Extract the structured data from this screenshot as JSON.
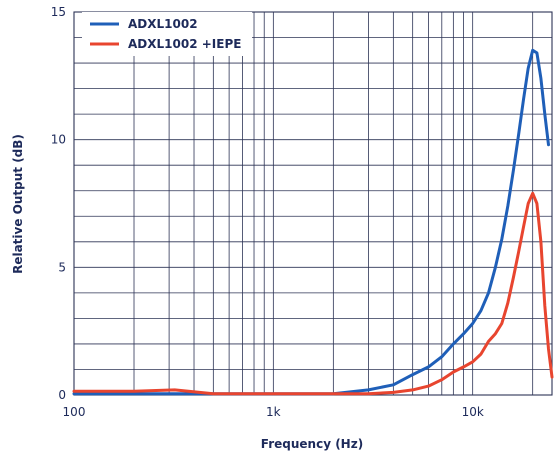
{
  "chart_data": {
    "type": "line",
    "xscale": "log",
    "xlabel": "Frequency (Hz)",
    "ylabel": "Relative Output (dB)",
    "xlim": [
      100,
      25000
    ],
    "ylim": [
      0,
      15
    ],
    "xticks": [
      {
        "value": 100,
        "label": "100"
      },
      {
        "value": 1000,
        "label": "1k"
      },
      {
        "value": 10000,
        "label": "10k"
      }
    ],
    "yticks": [
      {
        "value": 0,
        "label": "0"
      },
      {
        "value": 5,
        "label": "5"
      },
      {
        "value": 10,
        "label": "10"
      },
      {
        "value": 15,
        "label": "15"
      }
    ],
    "y_minor_step": 1,
    "grid": true,
    "legend_position": "top-left",
    "series": [
      {
        "name": "ADXL1002",
        "color": "#1f5fb8",
        "points": [
          [
            100,
            0.05
          ],
          [
            1000,
            0.05
          ],
          [
            2000,
            0.05
          ],
          [
            3000,
            0.2
          ],
          [
            4000,
            0.4
          ],
          [
            5000,
            0.8
          ],
          [
            6000,
            1.1
          ],
          [
            7000,
            1.5
          ],
          [
            8000,
            2.0
          ],
          [
            9000,
            2.4
          ],
          [
            10000,
            2.8
          ],
          [
            11000,
            3.3
          ],
          [
            12000,
            4.0
          ],
          [
            13000,
            5.0
          ],
          [
            14000,
            6.1
          ],
          [
            15000,
            7.4
          ],
          [
            16000,
            8.8
          ],
          [
            17000,
            10.2
          ],
          [
            18000,
            11.6
          ],
          [
            19000,
            12.8
          ],
          [
            20000,
            13.5
          ],
          [
            21000,
            13.4
          ],
          [
            22000,
            12.4
          ],
          [
            23000,
            11.0
          ],
          [
            24000,
            9.8
          ]
        ]
      },
      {
        "name": "ADXL1002 +IEPE",
        "color": "#e8452f",
        "points": [
          [
            100,
            0.15
          ],
          [
            200,
            0.15
          ],
          [
            320,
            0.2
          ],
          [
            500,
            0.05
          ],
          [
            1000,
            0.05
          ],
          [
            3000,
            0.05
          ],
          [
            4000,
            0.1
          ],
          [
            5000,
            0.2
          ],
          [
            6000,
            0.35
          ],
          [
            7000,
            0.6
          ],
          [
            8000,
            0.9
          ],
          [
            9000,
            1.1
          ],
          [
            10000,
            1.3
          ],
          [
            11000,
            1.6
          ],
          [
            12000,
            2.1
          ],
          [
            13000,
            2.4
          ],
          [
            14000,
            2.8
          ],
          [
            15000,
            3.6
          ],
          [
            16000,
            4.6
          ],
          [
            17000,
            5.6
          ],
          [
            18000,
            6.6
          ],
          [
            19000,
            7.5
          ],
          [
            20000,
            7.9
          ],
          [
            21000,
            7.5
          ],
          [
            22000,
            6.0
          ],
          [
            23000,
            3.5
          ],
          [
            24000,
            1.8
          ],
          [
            25000,
            0.7
          ]
        ]
      }
    ]
  }
}
